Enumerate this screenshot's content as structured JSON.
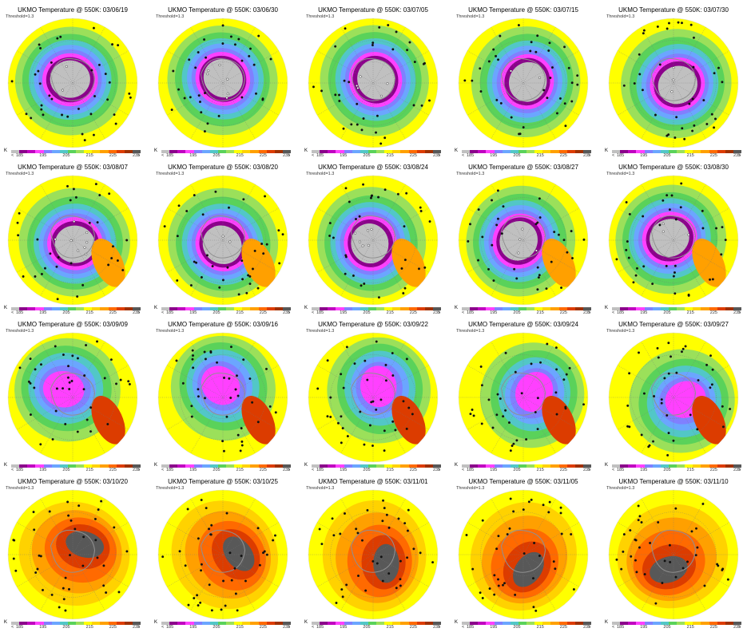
{
  "title_prefix": "UKMO Temperature @ 550K: ",
  "threshold": "Threshold=1.3",
  "unit": "K",
  "colorbar": {
    "colors": [
      "#c0c0c0",
      "#8b008b",
      "#c000c0",
      "#ff40ff",
      "#8080ff",
      "#6ba6ff",
      "#52c7c7",
      "#5ad25a",
      "#9be05a",
      "#ffff00",
      "#ffd200",
      "#ffa000",
      "#ff6a00",
      "#dc3c00",
      "#a03000",
      "#585858"
    ],
    "labels": [
      "<",
      "185",
      "195",
      "205",
      "215",
      "225",
      "235",
      ">"
    ]
  },
  "panels": [
    {
      "date": "03/06/19"
    },
    {
      "date": "03/06/30"
    },
    {
      "date": "03/07/05"
    },
    {
      "date": "03/07/15"
    },
    {
      "date": "03/07/30"
    },
    {
      "date": "03/08/07"
    },
    {
      "date": "03/08/20"
    },
    {
      "date": "03/08/24"
    },
    {
      "date": "03/08/27"
    },
    {
      "date": "03/08/30"
    },
    {
      "date": "03/09/09"
    },
    {
      "date": "03/09/16"
    },
    {
      "date": "03/09/22"
    },
    {
      "date": "03/09/24"
    },
    {
      "date": "03/09/27"
    },
    {
      "date": "03/10/20"
    },
    {
      "date": "03/10/25"
    },
    {
      "date": "03/11/01"
    },
    {
      "date": "03/11/05"
    },
    {
      "date": "03/11/10"
    }
  ]
}
